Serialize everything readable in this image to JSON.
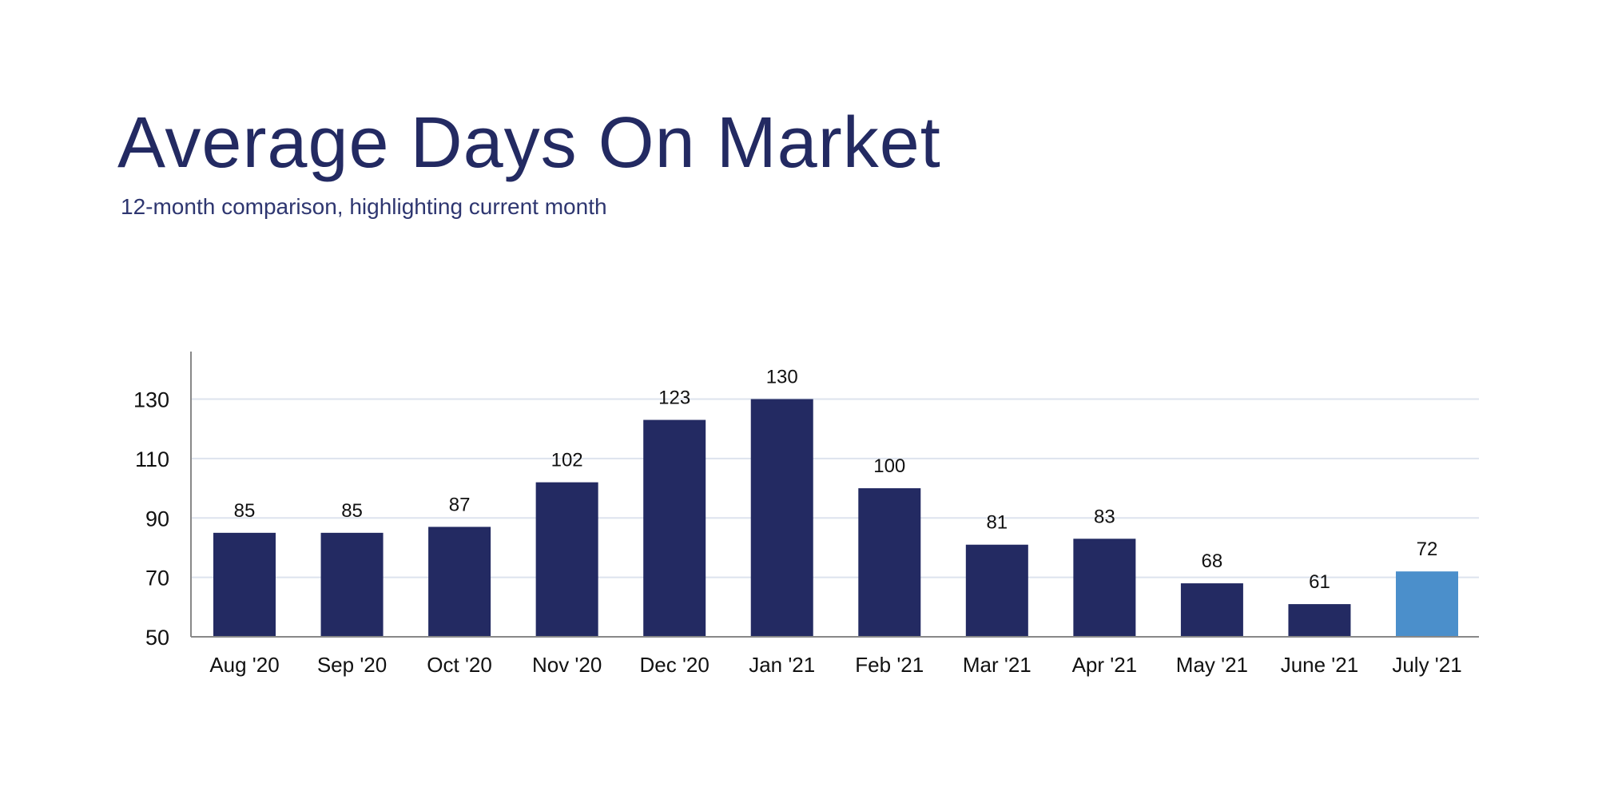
{
  "chart_data": {
    "type": "bar",
    "title": "Average Days On Market",
    "subtitle": "12-month comparison, highlighting current month",
    "categories": [
      "Aug '20",
      "Sep '20",
      "Oct '20",
      "Nov '20",
      "Dec '20",
      "Jan '21",
      "Feb '21",
      "Mar '21",
      "Apr '21",
      "May '21",
      "June '21",
      "July '21"
    ],
    "values": [
      85,
      85,
      87,
      102,
      123,
      130,
      100,
      81,
      83,
      68,
      61,
      72
    ],
    "highlight_index": 11,
    "yticks": [
      50,
      70,
      90,
      110,
      130
    ],
    "ylim": [
      50,
      146
    ],
    "xlabel": "",
    "ylabel": "",
    "grid": true,
    "colors": {
      "bar": "#232a62",
      "highlight": "#4b8fcb",
      "grid": "#dde3ee",
      "axis": "#888888",
      "text": "#111111"
    }
  }
}
